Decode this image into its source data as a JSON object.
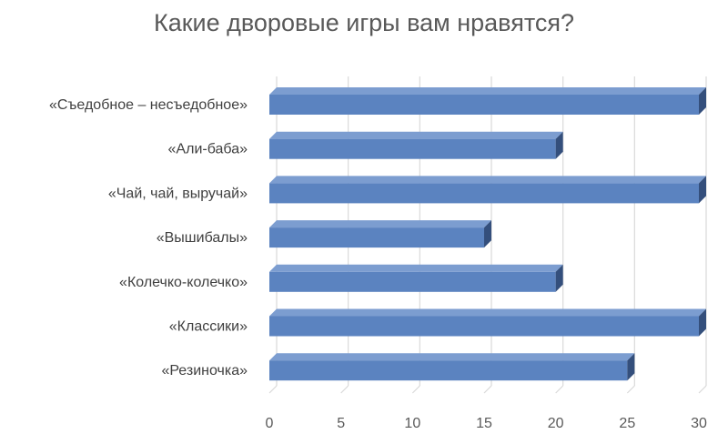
{
  "chart_data": {
    "type": "bar",
    "orientation": "horizontal",
    "style": "3d",
    "title": "Какие дворовые игры вам нравятся?",
    "categories": [
      "«Съедобное – несъедобное»",
      "«Али-баба»",
      "«Чай, чай, выручай»",
      "«Вышибалы»",
      "«Колечко-колечко»",
      "«Классики»",
      "«Резиночка»"
    ],
    "values": [
      30,
      20,
      30,
      15,
      20,
      30,
      25
    ],
    "xlim": [
      0,
      30
    ],
    "xticks": [
      "0",
      "5",
      "10",
      "15",
      "20",
      "25",
      "30"
    ],
    "grid": true,
    "legend": "none",
    "colors": {
      "bar_front": "#5b83c0",
      "bar_top": "#7c9dd0",
      "bar_side": "#344f7c",
      "grid": "#d9d9d9"
    }
  }
}
